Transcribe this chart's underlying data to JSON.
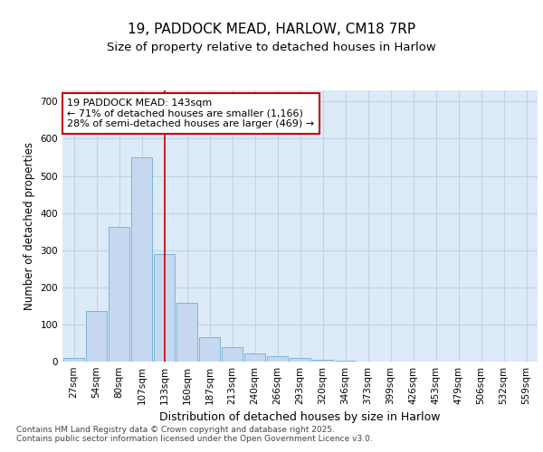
{
  "title_line1": "19, PADDOCK MEAD, HARLOW, CM18 7RP",
  "title_line2": "Size of property relative to detached houses in Harlow",
  "xlabel": "Distribution of detached houses by size in Harlow",
  "ylabel": "Number of detached properties",
  "categories": [
    "27sqm",
    "54sqm",
    "80sqm",
    "107sqm",
    "133sqm",
    "160sqm",
    "187sqm",
    "213sqm",
    "240sqm",
    "266sqm",
    "293sqm",
    "320sqm",
    "346sqm",
    "373sqm",
    "399sqm",
    "426sqm",
    "453sqm",
    "479sqm",
    "506sqm",
    "532sqm",
    "559sqm"
  ],
  "values": [
    10,
    137,
    362,
    549,
    290,
    157,
    65,
    40,
    22,
    14,
    10,
    5,
    2,
    0,
    0,
    0,
    0,
    0,
    0,
    0,
    0
  ],
  "bar_color": "#c5d8f0",
  "bar_edge_color": "#6baed6",
  "vline_index": 4.5,
  "vline_color": "#cc0000",
  "annotation_text": "19 PADDOCK MEAD: 143sqm\n← 71% of detached houses are smaller (1,166)\n28% of semi-detached houses are larger (469) →",
  "annotation_box_color": "#ffffff",
  "annotation_box_edge_color": "#cc0000",
  "ylim": [
    0,
    730
  ],
  "yticks": [
    0,
    100,
    200,
    300,
    400,
    500,
    600,
    700
  ],
  "grid_color": "#c0d4e8",
  "plot_bg_color": "#ddeaf8",
  "fig_bg_color": "#ffffff",
  "footer_text": "Contains HM Land Registry data © Crown copyright and database right 2025.\nContains public sector information licensed under the Open Government Licence v3.0.",
  "title_fontsize": 11,
  "subtitle_fontsize": 9.5,
  "tick_fontsize": 7.5,
  "xlabel_fontsize": 9,
  "ylabel_fontsize": 8.5,
  "annot_fontsize": 8,
  "footer_fontsize": 6.5
}
